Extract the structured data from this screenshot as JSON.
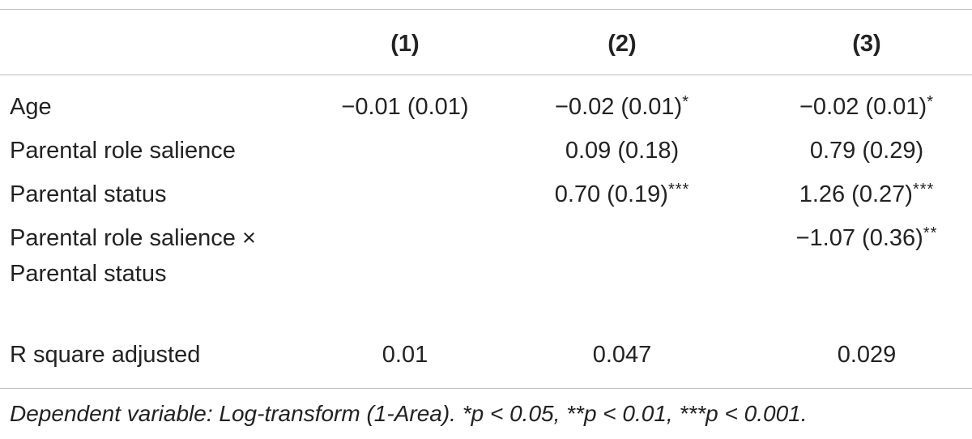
{
  "table": {
    "headers": [
      "(1)",
      "(2)",
      "(3)"
    ],
    "rows": [
      {
        "label": "Age",
        "c1": "−0.01 (0.01)",
        "c1_sig": "",
        "c2": "−0.02 (0.01)",
        "c2_sig": "*",
        "c3": "−0.02 (0.01)",
        "c3_sig": "*"
      },
      {
        "label": "Parental role salience",
        "c1": "",
        "c1_sig": "",
        "c2": "0.09 (0.18)",
        "c2_sig": "",
        "c3": "0.79 (0.29)",
        "c3_sig": ""
      },
      {
        "label": "Parental status",
        "c1": "",
        "c1_sig": "",
        "c2": "0.70 (0.19)",
        "c2_sig": "***",
        "c3": "1.26 (0.27)",
        "c3_sig": "***"
      },
      {
        "label": "Parental role salience × Parental status",
        "c1": "",
        "c1_sig": "",
        "c2": "",
        "c2_sig": "",
        "c3": "−1.07 (0.36)",
        "c3_sig": "**"
      },
      {
        "label": "R square adjusted",
        "c1": "0.01",
        "c1_sig": "",
        "c2": "0.047",
        "c2_sig": "",
        "c3": "0.029",
        "c3_sig": ""
      }
    ],
    "note": "Dependent variable: Log-transform (1-Area). *p < 0.05, **p < 0.01, ***p < 0.001."
  }
}
